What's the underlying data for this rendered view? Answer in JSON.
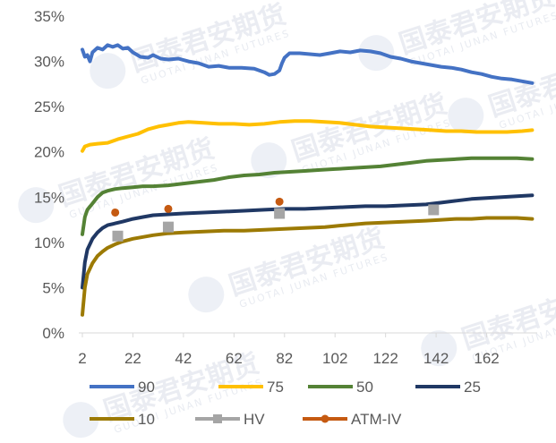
{
  "watermark": {
    "text": "国泰君安期货",
    "sub": "GUOTAI JUNAN FUTURES"
  },
  "chart_data": {
    "type": "line",
    "title": "",
    "xlabel": "",
    "ylabel": "",
    "xlim": [
      2,
      182
    ],
    "ylim": [
      0,
      0.35
    ],
    "x_ticks": [
      2,
      22,
      42,
      62,
      82,
      102,
      122,
      142,
      162
    ],
    "y_ticks": [
      0,
      0.05,
      0.1,
      0.15,
      0.2,
      0.25,
      0.3,
      0.35
    ],
    "y_tick_labels": [
      "0%",
      "5%",
      "10%",
      "15%",
      "20%",
      "25%",
      "30%",
      "35%"
    ],
    "grid": false,
    "legend_position": "bottom",
    "series": [
      {
        "name": "90",
        "color": "#4472c4",
        "kind": "line",
        "points": [
          [
            2,
            0.313
          ],
          [
            3,
            0.305
          ],
          [
            4,
            0.307
          ],
          [
            5,
            0.3
          ],
          [
            6,
            0.31
          ],
          [
            8,
            0.315
          ],
          [
            10,
            0.313
          ],
          [
            12,
            0.318
          ],
          [
            14,
            0.316
          ],
          [
            16,
            0.318
          ],
          [
            18,
            0.314
          ],
          [
            20,
            0.315
          ],
          [
            22,
            0.31
          ],
          [
            25,
            0.305
          ],
          [
            28,
            0.304
          ],
          [
            30,
            0.307
          ],
          [
            33,
            0.303
          ],
          [
            36,
            0.302
          ],
          [
            40,
            0.303
          ],
          [
            44,
            0.3
          ],
          [
            48,
            0.298
          ],
          [
            52,
            0.294
          ],
          [
            56,
            0.295
          ],
          [
            60,
            0.293
          ],
          [
            65,
            0.293
          ],
          [
            70,
            0.292
          ],
          [
            74,
            0.288
          ],
          [
            76,
            0.285
          ],
          [
            78,
            0.286
          ],
          [
            80,
            0.29
          ],
          [
            81,
            0.298
          ],
          [
            82,
            0.304
          ],
          [
            84,
            0.309
          ],
          [
            88,
            0.309
          ],
          [
            92,
            0.308
          ],
          [
            96,
            0.307
          ],
          [
            100,
            0.309
          ],
          [
            104,
            0.311
          ],
          [
            108,
            0.31
          ],
          [
            112,
            0.312
          ],
          [
            116,
            0.311
          ],
          [
            120,
            0.309
          ],
          [
            124,
            0.305
          ],
          [
            128,
            0.303
          ],
          [
            132,
            0.3
          ],
          [
            136,
            0.298
          ],
          [
            140,
            0.296
          ],
          [
            144,
            0.294
          ],
          [
            148,
            0.293
          ],
          [
            152,
            0.291
          ],
          [
            156,
            0.288
          ],
          [
            160,
            0.286
          ],
          [
            164,
            0.283
          ],
          [
            168,
            0.281
          ],
          [
            172,
            0.28
          ],
          [
            176,
            0.278
          ],
          [
            180,
            0.276
          ]
        ]
      },
      {
        "name": "75",
        "color": "#ffc000",
        "kind": "line",
        "points": [
          [
            2,
            0.201
          ],
          [
            3,
            0.206
          ],
          [
            5,
            0.208
          ],
          [
            8,
            0.209
          ],
          [
            12,
            0.21
          ],
          [
            16,
            0.214
          ],
          [
            20,
            0.217
          ],
          [
            24,
            0.22
          ],
          [
            28,
            0.225
          ],
          [
            32,
            0.228
          ],
          [
            36,
            0.23
          ],
          [
            40,
            0.232
          ],
          [
            44,
            0.233
          ],
          [
            50,
            0.232
          ],
          [
            56,
            0.231
          ],
          [
            62,
            0.231
          ],
          [
            68,
            0.23
          ],
          [
            74,
            0.231
          ],
          [
            80,
            0.233
          ],
          [
            86,
            0.234
          ],
          [
            92,
            0.234
          ],
          [
            98,
            0.233
          ],
          [
            104,
            0.232
          ],
          [
            110,
            0.23
          ],
          [
            116,
            0.228
          ],
          [
            122,
            0.227
          ],
          [
            128,
            0.226
          ],
          [
            134,
            0.225
          ],
          [
            140,
            0.224
          ],
          [
            146,
            0.223
          ],
          [
            152,
            0.223
          ],
          [
            158,
            0.222
          ],
          [
            164,
            0.222
          ],
          [
            170,
            0.222
          ],
          [
            176,
            0.223
          ],
          [
            180,
            0.224
          ]
        ]
      },
      {
        "name": "50",
        "color": "#548235",
        "kind": "line",
        "points": [
          [
            2,
            0.109
          ],
          [
            3,
            0.128
          ],
          [
            4,
            0.136
          ],
          [
            6,
            0.143
          ],
          [
            8,
            0.15
          ],
          [
            10,
            0.155
          ],
          [
            12,
            0.157
          ],
          [
            15,
            0.159
          ],
          [
            18,
            0.16
          ],
          [
            22,
            0.161
          ],
          [
            26,
            0.162
          ],
          [
            30,
            0.162
          ],
          [
            36,
            0.163
          ],
          [
            42,
            0.165
          ],
          [
            48,
            0.167
          ],
          [
            54,
            0.169
          ],
          [
            60,
            0.172
          ],
          [
            66,
            0.174
          ],
          [
            72,
            0.175
          ],
          [
            78,
            0.177
          ],
          [
            84,
            0.178
          ],
          [
            90,
            0.179
          ],
          [
            96,
            0.18
          ],
          [
            102,
            0.181
          ],
          [
            108,
            0.182
          ],
          [
            114,
            0.183
          ],
          [
            120,
            0.184
          ],
          [
            126,
            0.186
          ],
          [
            132,
            0.188
          ],
          [
            138,
            0.19
          ],
          [
            144,
            0.191
          ],
          [
            150,
            0.192
          ],
          [
            156,
            0.193
          ],
          [
            162,
            0.193
          ],
          [
            168,
            0.193
          ],
          [
            174,
            0.193
          ],
          [
            180,
            0.192
          ]
        ]
      },
      {
        "name": "25",
        "color": "#203864",
        "kind": "line",
        "points": [
          [
            2,
            0.05
          ],
          [
            3,
            0.078
          ],
          [
            4,
            0.092
          ],
          [
            6,
            0.104
          ],
          [
            8,
            0.111
          ],
          [
            10,
            0.116
          ],
          [
            12,
            0.119
          ],
          [
            15,
            0.121
          ],
          [
            18,
            0.123
          ],
          [
            22,
            0.126
          ],
          [
            26,
            0.128
          ],
          [
            30,
            0.13
          ],
          [
            36,
            0.131
          ],
          [
            42,
            0.132
          ],
          [
            50,
            0.133
          ],
          [
            58,
            0.134
          ],
          [
            66,
            0.135
          ],
          [
            74,
            0.136
          ],
          [
            82,
            0.137
          ],
          [
            90,
            0.137
          ],
          [
            98,
            0.138
          ],
          [
            106,
            0.139
          ],
          [
            114,
            0.14
          ],
          [
            122,
            0.14
          ],
          [
            130,
            0.141
          ],
          [
            138,
            0.142
          ],
          [
            144,
            0.144
          ],
          [
            150,
            0.146
          ],
          [
            156,
            0.148
          ],
          [
            162,
            0.149
          ],
          [
            168,
            0.15
          ],
          [
            174,
            0.151
          ],
          [
            180,
            0.152
          ]
        ]
      },
      {
        "name": "10",
        "color": "#9c7a04",
        "kind": "line",
        "points": [
          [
            2,
            0.02
          ],
          [
            3,
            0.05
          ],
          [
            4,
            0.065
          ],
          [
            6,
            0.077
          ],
          [
            8,
            0.085
          ],
          [
            10,
            0.09
          ],
          [
            12,
            0.094
          ],
          [
            15,
            0.098
          ],
          [
            18,
            0.101
          ],
          [
            22,
            0.104
          ],
          [
            26,
            0.106
          ],
          [
            30,
            0.108
          ],
          [
            36,
            0.11
          ],
          [
            42,
            0.111
          ],
          [
            50,
            0.112
          ],
          [
            58,
            0.113
          ],
          [
            66,
            0.113
          ],
          [
            74,
            0.114
          ],
          [
            82,
            0.115
          ],
          [
            90,
            0.116
          ],
          [
            98,
            0.117
          ],
          [
            106,
            0.119
          ],
          [
            114,
            0.121
          ],
          [
            122,
            0.122
          ],
          [
            130,
            0.123
          ],
          [
            138,
            0.124
          ],
          [
            144,
            0.125
          ],
          [
            150,
            0.126
          ],
          [
            156,
            0.126
          ],
          [
            162,
            0.127
          ],
          [
            168,
            0.127
          ],
          [
            174,
            0.127
          ],
          [
            180,
            0.126
          ]
        ]
      },
      {
        "name": "HV",
        "color": "#a5a5a5",
        "kind": "square",
        "points": [
          [
            16,
            0.107
          ],
          [
            36,
            0.117
          ],
          [
            80,
            0.132
          ],
          [
            141,
            0.136
          ]
        ]
      },
      {
        "name": "ATM-IV",
        "color": "#c55a11",
        "kind": "dot",
        "points": [
          [
            15,
            0.133
          ],
          [
            36,
            0.137
          ],
          [
            80,
            0.145
          ]
        ]
      }
    ]
  }
}
